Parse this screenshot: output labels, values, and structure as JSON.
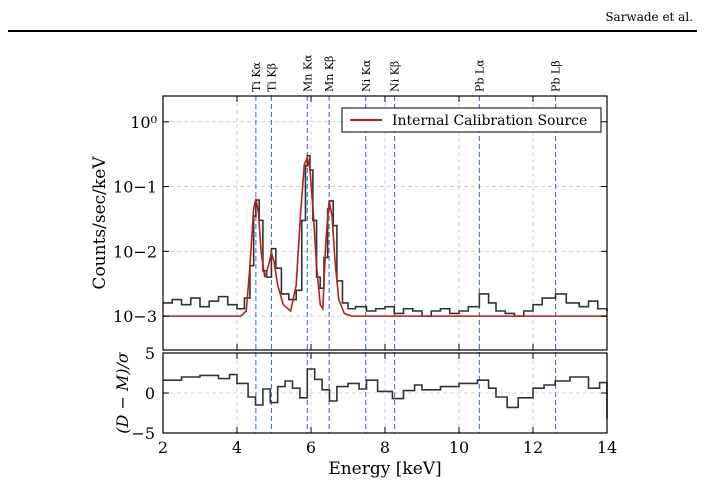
{
  "header": {
    "author": "Sarwade et al."
  },
  "colors": {
    "data": "#333333",
    "model": "#b22222",
    "line_marker": "#4a74b4",
    "grid": "#c8c8c8"
  },
  "chart_data": [
    {
      "type": "line",
      "xlabel": "",
      "ylabel": "Counts/sec/keV",
      "yscale": "log",
      "xlim": [
        2,
        14
      ],
      "ylim": [
        0.0003,
        2.5
      ],
      "yticks": [
        0.001,
        0.01,
        0.1,
        1
      ],
      "ytick_labels": [
        "10−3",
        "10−2",
        "10−1",
        "10⁰"
      ],
      "grid": true,
      "legend_position": "top-right",
      "lines": [
        {
          "label": "Ti Kα",
          "energy": 4.51
        },
        {
          "label": "Ti Kβ",
          "energy": 4.93
        },
        {
          "label": "Mn Kα",
          "energy": 5.9
        },
        {
          "label": "Mn Kβ",
          "energy": 6.49
        },
        {
          "label": "Ni Kα",
          "energy": 7.48
        },
        {
          "label": "Ni Kβ",
          "energy": 8.26
        },
        {
          "label": "Pb Lα",
          "energy": 10.55
        },
        {
          "label": "Pb Lβ",
          "energy": 12.61
        }
      ],
      "series": [
        {
          "name": "",
          "x": [
            2.0,
            2.25,
            2.5,
            2.75,
            3.0,
            3.25,
            3.5,
            3.75,
            4.0,
            4.2,
            4.35,
            4.45,
            4.51,
            4.6,
            4.7,
            4.8,
            4.93,
            5.05,
            5.2,
            5.4,
            5.6,
            5.75,
            5.85,
            5.9,
            5.97,
            6.05,
            6.15,
            6.25,
            6.35,
            6.45,
            6.5,
            6.6,
            6.7,
            6.85,
            7.0,
            7.2,
            7.5,
            7.75,
            8.0,
            8.25,
            8.5,
            8.75,
            9.0,
            9.25,
            9.5,
            9.75,
            10.0,
            10.25,
            10.55,
            10.8,
            11.0,
            11.25,
            11.5,
            11.75,
            12.0,
            12.25,
            12.61,
            12.9,
            13.25,
            13.5,
            13.75,
            14.0
          ],
          "values": [
            0.0016,
            0.0018,
            0.0015,
            0.0019,
            0.0014,
            0.0017,
            0.002,
            0.0015,
            0.0013,
            0.0019,
            0.006,
            0.035,
            0.062,
            0.03,
            0.005,
            0.004,
            0.011,
            0.0055,
            0.0022,
            0.0018,
            0.0025,
            0.03,
            0.21,
            0.3,
            0.18,
            0.03,
            0.004,
            0.0027,
            0.008,
            0.045,
            0.06,
            0.025,
            0.0035,
            0.0016,
            0.0013,
            0.0014,
            0.0012,
            0.0013,
            0.0014,
            0.0011,
            0.0013,
            0.0012,
            0.001,
            0.0012,
            0.0013,
            0.0011,
            0.0012,
            0.0014,
            0.0022,
            0.0016,
            0.0012,
            0.0011,
            0.001,
            0.0012,
            0.0015,
            0.0019,
            0.0022,
            0.0016,
            0.0014,
            0.0017,
            0.0013,
            0.0012
          ]
        },
        {
          "name": "Internal Calibration Source",
          "x": [
            2.0,
            4.1,
            4.25,
            4.35,
            4.45,
            4.51,
            4.58,
            4.65,
            4.75,
            4.85,
            4.93,
            5.0,
            5.1,
            5.25,
            5.45,
            5.6,
            5.72,
            5.82,
            5.9,
            5.97,
            6.05,
            6.15,
            6.25,
            6.32,
            6.4,
            6.49,
            6.57,
            6.65,
            6.75,
            6.9,
            7.1,
            14.0
          ],
          "values": [
            0.001,
            0.001,
            0.0012,
            0.006,
            0.045,
            0.065,
            0.04,
            0.01,
            0.004,
            0.006,
            0.0095,
            0.007,
            0.003,
            0.0015,
            0.0012,
            0.003,
            0.04,
            0.22,
            0.28,
            0.19,
            0.05,
            0.006,
            0.0015,
            0.0013,
            0.014,
            0.06,
            0.035,
            0.007,
            0.0018,
            0.0011,
            0.001,
            0.001
          ]
        }
      ]
    },
    {
      "type": "line",
      "xlabel": "Energy [keV]",
      "ylabel": "(D − M)/σ",
      "xlim": [
        2,
        14
      ],
      "ylim": [
        -5,
        5
      ],
      "xticks": [
        2,
        4,
        6,
        8,
        10,
        12,
        14
      ],
      "yticks": [
        -5,
        0,
        5
      ],
      "grid": true,
      "series": [
        {
          "name": "",
          "x": [
            2.0,
            2.5,
            3.0,
            3.5,
            3.8,
            4.0,
            4.3,
            4.5,
            4.7,
            4.9,
            5.1,
            5.3,
            5.5,
            5.7,
            5.9,
            6.1,
            6.3,
            6.5,
            6.7,
            7.0,
            7.3,
            7.5,
            7.8,
            8.2,
            8.5,
            8.8,
            9.0,
            9.5,
            10.0,
            10.5,
            10.8,
            11.0,
            11.3,
            11.6,
            12.0,
            12.3,
            12.6,
            13.0,
            13.5,
            13.8,
            14.0
          ],
          "values": [
            1.6,
            2.0,
            2.2,
            1.8,
            2.3,
            1.2,
            -0.5,
            -1.5,
            0.5,
            -1.2,
            0.8,
            1.5,
            0.6,
            -0.6,
            3.0,
            1.7,
            0.4,
            -1.0,
            0.8,
            1.2,
            0.5,
            1.6,
            0.2,
            -0.7,
            0.3,
            1.0,
            0.4,
            0.8,
            1.2,
            1.6,
            0.6,
            -0.5,
            -1.8,
            -0.6,
            0.6,
            1.0,
            1.5,
            2.0,
            0.6,
            1.3,
            -3.2
          ]
        }
      ]
    }
  ]
}
